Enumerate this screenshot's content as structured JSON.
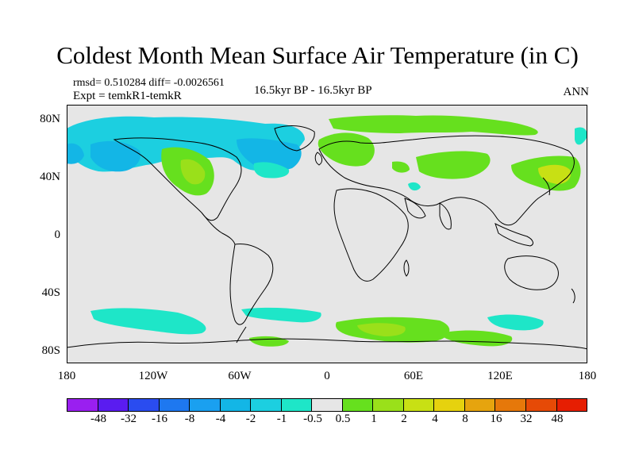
{
  "title": "Coldest Month Mean Surface Air Temperature (in C)",
  "stats": {
    "line": "rmsd= 0.510284  diff= -0.0026561"
  },
  "experiment": "Expt = temkR1-temkR",
  "period": "16.5kyr BP - 16.5kyr BP",
  "season": "ANN",
  "axes": {
    "lat_labels": [
      "80N",
      "40N",
      "0",
      "40S",
      "80S"
    ],
    "lon_labels": [
      "180",
      "120W",
      "60W",
      "0",
      "60E",
      "120E",
      "180"
    ]
  },
  "colorbar": {
    "labels": [
      "-48",
      "-32",
      "-16",
      "-8",
      "-4",
      "-2",
      "-1",
      "-0.5",
      "0.5",
      "1",
      "2",
      "4",
      "8",
      "16",
      "32",
      "48"
    ],
    "colors": [
      "#9a1ff0",
      "#5a1cf0",
      "#2a4cf0",
      "#1e78f0",
      "#1aa0f0",
      "#13b6e6",
      "#1ccfe0",
      "#1ee6c8",
      "#e6e6e6",
      "#66e01e",
      "#9ae01a",
      "#c8e014",
      "#e6d20e",
      "#e6a40e",
      "#e6780a",
      "#e64a06",
      "#e61e02"
    ]
  },
  "colors": {
    "background": "#e6e6e6",
    "positive_small": "#66e01e",
    "positive_mid": "#9ae01a",
    "positive_high": "#c8e014",
    "negative_small": "#1ee6c8",
    "negative_mid": "#1ccfe0",
    "negative_high": "#13b6e6"
  }
}
